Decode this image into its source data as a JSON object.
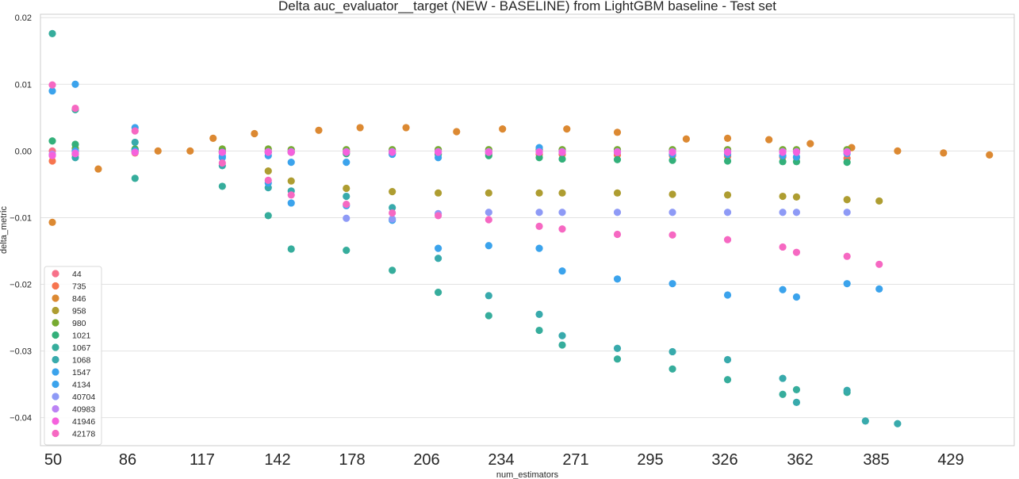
{
  "chart_data": {
    "type": "scatter",
    "title": "Delta auc_evaluator__target (NEW - BASELINE) from LightGBM baseline - Test set",
    "xlabel": "num_estimators",
    "ylabel": "delta_metric",
    "ylim": [
      -0.0442,
      0.0205
    ],
    "y_ticks": [
      0.02,
      0.01,
      0.0,
      -0.01,
      -0.02,
      -0.03,
      -0.04
    ],
    "y_tick_labels": [
      "0.02",
      "0.01",
      "0.00",
      "−0.01",
      "−0.02",
      "−0.03",
      "−0.04"
    ],
    "x_ticks": [
      50,
      86,
      117,
      142,
      178,
      206,
      234,
      271,
      295,
      326,
      362,
      385,
      429
    ],
    "grid": "horizontal",
    "legend_placement": "lower-left",
    "series": [
      {
        "name": "44",
        "color": "#f77189",
        "points": [
          [
            50,
            0.0
          ],
          [
            60,
            0.0
          ],
          [
            86,
            0.0
          ],
          [
            124,
            0.0
          ],
          [
            144,
            0.0
          ],
          [
            154,
            0.0
          ],
          [
            178,
            0.0
          ],
          [
            198,
            0.0
          ],
          [
            218,
            0.0
          ],
          [
            240,
            0.0
          ],
          [
            262,
            0.0
          ],
          [
            272,
            0.0
          ],
          [
            296,
            0.0
          ],
          [
            320,
            0.0
          ],
          [
            344,
            0.0
          ],
          [
            368,
            0.0
          ],
          [
            374,
            0.0
          ],
          [
            396,
            0.0
          ]
        ]
      },
      {
        "name": "735",
        "color": "#f7754f",
        "points": [
          [
            50,
            -0.0015
          ],
          [
            60,
            -0.0005
          ],
          [
            86,
            -0.0003
          ],
          [
            124,
            -0.0003
          ],
          [
            144,
            -0.0002
          ],
          [
            154,
            -0.0002
          ],
          [
            178,
            -0.0002
          ],
          [
            198,
            -0.0003
          ],
          [
            218,
            -0.0004
          ],
          [
            240,
            -0.0004
          ],
          [
            262,
            -0.0005
          ],
          [
            272,
            -0.0005
          ],
          [
            296,
            -0.0006
          ],
          [
            320,
            -0.0007
          ],
          [
            344,
            -0.0008
          ],
          [
            368,
            -0.0009
          ],
          [
            374,
            -0.001
          ],
          [
            396,
            -0.0011
          ]
        ]
      },
      {
        "name": "846",
        "color": "#dc8932",
        "points": [
          [
            50,
            -0.0107
          ],
          [
            70,
            -0.0027
          ],
          [
            96,
            0.0
          ],
          [
            110,
            0.0
          ],
          [
            120,
            0.0019
          ],
          [
            138,
            0.0026
          ],
          [
            166,
            0.0031
          ],
          [
            184,
            0.0035
          ],
          [
            204,
            0.0035
          ],
          [
            226,
            0.0029
          ],
          [
            246,
            0.0033
          ],
          [
            274,
            0.0033
          ],
          [
            296,
            0.0028
          ],
          [
            326,
            0.0018
          ],
          [
            344,
            0.0019
          ],
          [
            362,
            0.0017
          ],
          [
            380,
            0.0011
          ],
          [
            398,
            0.0005
          ],
          [
            418,
            0.0
          ],
          [
            438,
            -0.0003
          ],
          [
            458,
            -0.0006
          ]
        ]
      },
      {
        "name": "958",
        "color": "#ae9d31",
        "points": [
          [
            144,
            -0.003
          ],
          [
            154,
            -0.0045
          ],
          [
            178,
            -0.0056
          ],
          [
            198,
            -0.0061
          ],
          [
            218,
            -0.0063
          ],
          [
            240,
            -0.0063
          ],
          [
            262,
            -0.0063
          ],
          [
            272,
            -0.0063
          ],
          [
            296,
            -0.0063
          ],
          [
            320,
            -0.0065
          ],
          [
            344,
            -0.0066
          ],
          [
            368,
            -0.0068
          ],
          [
            374,
            -0.0069
          ],
          [
            396,
            -0.0073
          ],
          [
            410,
            -0.0075
          ]
        ]
      },
      {
        "name": "980",
        "color": "#77ab31",
        "points": [
          [
            60,
            0.0004
          ],
          [
            86,
            0.0003
          ],
          [
            124,
            0.0003
          ],
          [
            144,
            0.0003
          ],
          [
            154,
            0.0002
          ],
          [
            178,
            0.0002
          ],
          [
            198,
            0.0002
          ],
          [
            218,
            0.0002
          ],
          [
            240,
            0.0002
          ],
          [
            262,
            0.0002
          ],
          [
            272,
            0.0002
          ],
          [
            296,
            0.0002
          ],
          [
            320,
            0.0002
          ],
          [
            344,
            0.0002
          ],
          [
            368,
            0.0002
          ],
          [
            374,
            0.0002
          ],
          [
            396,
            0.0002
          ]
        ]
      },
      {
        "name": "1021",
        "color": "#33b07a",
        "points": [
          [
            50,
            0.0015
          ],
          [
            60,
            0.001
          ],
          [
            86,
            0.0002
          ],
          [
            124,
            -0.0001
          ],
          [
            144,
            -0.0002
          ],
          [
            154,
            -0.0002
          ],
          [
            178,
            -0.0004
          ],
          [
            198,
            -0.0004
          ],
          [
            218,
            -0.0005
          ],
          [
            240,
            -0.0007
          ],
          [
            262,
            -0.001
          ],
          [
            272,
            -0.0012
          ],
          [
            296,
            -0.0013
          ],
          [
            320,
            -0.0014
          ],
          [
            344,
            -0.0015
          ],
          [
            368,
            -0.0016
          ],
          [
            374,
            -0.0016
          ],
          [
            396,
            -0.0017
          ]
        ]
      },
      {
        "name": "1067",
        "color": "#36ad9c",
        "points": [
          [
            50,
            0.0176
          ],
          [
            60,
            0.0062
          ],
          [
            86,
            -0.0041
          ],
          [
            124,
            -0.0053
          ],
          [
            144,
            -0.0097
          ],
          [
            154,
            -0.0147
          ],
          [
            178,
            -0.0149
          ],
          [
            198,
            -0.0179
          ],
          [
            218,
            -0.0212
          ],
          [
            240,
            -0.0247
          ],
          [
            262,
            -0.0269
          ],
          [
            272,
            -0.0291
          ],
          [
            296,
            -0.0312
          ],
          [
            320,
            -0.0327
          ],
          [
            344,
            -0.0343
          ],
          [
            368,
            -0.0365
          ],
          [
            374,
            -0.0358
          ],
          [
            396,
            -0.0362
          ]
        ]
      },
      {
        "name": "1068",
        "color": "#38aaac",
        "points": [
          [
            60,
            -0.001
          ],
          [
            86,
            0.0013
          ],
          [
            124,
            -0.0022
          ],
          [
            144,
            -0.0055
          ],
          [
            154,
            -0.006
          ],
          [
            178,
            -0.0068
          ],
          [
            198,
            -0.0085
          ],
          [
            218,
            -0.0161
          ],
          [
            240,
            -0.0217
          ],
          [
            262,
            -0.0245
          ],
          [
            272,
            -0.0277
          ],
          [
            296,
            -0.0296
          ],
          [
            320,
            -0.0301
          ],
          [
            344,
            -0.0313
          ],
          [
            368,
            -0.0341
          ],
          [
            374,
            -0.0377
          ],
          [
            396,
            -0.0359
          ],
          [
            404,
            -0.0405
          ],
          [
            418,
            -0.0409
          ]
        ]
      },
      {
        "name": "1547",
        "color": "#3ba3ec",
        "points": [
          [
            60,
            0.01
          ],
          [
            86,
            0.0035
          ],
          [
            124,
            -0.001
          ],
          [
            144,
            -0.0048
          ],
          [
            154,
            -0.0078
          ],
          [
            178,
            -0.0082
          ],
          [
            198,
            -0.0104
          ],
          [
            218,
            -0.0146
          ],
          [
            240,
            -0.0142
          ],
          [
            262,
            -0.0146
          ],
          [
            272,
            -0.018
          ],
          [
            296,
            -0.0192
          ],
          [
            320,
            -0.0199
          ],
          [
            344,
            -0.0216
          ],
          [
            368,
            -0.0208
          ],
          [
            374,
            -0.0219
          ],
          [
            396,
            -0.0199
          ],
          [
            410,
            -0.0207
          ]
        ]
      },
      {
        "name": "4134",
        "color": "#3ba3ec",
        "points": [
          [
            50,
            0.009
          ],
          [
            60,
            0.0
          ],
          [
            86,
            0.0
          ],
          [
            124,
            -0.0008
          ],
          [
            144,
            -0.0007
          ],
          [
            154,
            -0.0017
          ],
          [
            178,
            -0.0017
          ],
          [
            198,
            -0.0005
          ],
          [
            218,
            -0.001
          ],
          [
            240,
            -0.0002
          ],
          [
            262,
            0.0005
          ],
          [
            272,
            -0.0002
          ],
          [
            296,
            -0.0002
          ],
          [
            320,
            -0.0005
          ],
          [
            344,
            -0.0005
          ],
          [
            368,
            -0.0007
          ],
          [
            374,
            -0.0009
          ],
          [
            396,
            -0.0004
          ]
        ]
      },
      {
        "name": "40704",
        "color": "#8e9af6",
        "points": [
          [
            178,
            -0.0101
          ],
          [
            198,
            -0.0102
          ],
          [
            218,
            -0.0094
          ],
          [
            240,
            -0.0092
          ],
          [
            262,
            -0.0092
          ],
          [
            272,
            -0.0092
          ],
          [
            296,
            -0.0092
          ],
          [
            320,
            -0.0092
          ],
          [
            344,
            -0.0092
          ],
          [
            368,
            -0.0092
          ],
          [
            374,
            -0.0092
          ],
          [
            396,
            -0.0092
          ]
        ]
      },
      {
        "name": "40983",
        "color": "#bb83f4",
        "points": [
          [
            50,
            -0.0005
          ],
          [
            60,
            -0.0003
          ],
          [
            86,
            -0.0002
          ],
          [
            124,
            -0.0002
          ],
          [
            144,
            -0.0001
          ],
          [
            154,
            -0.0001
          ],
          [
            178,
            -0.0001
          ],
          [
            198,
            -0.0001
          ],
          [
            218,
            -0.0001
          ],
          [
            240,
            -0.0001
          ],
          [
            262,
            -0.0001
          ],
          [
            272,
            -0.0001
          ],
          [
            296,
            -0.0001
          ],
          [
            320,
            -0.0001
          ],
          [
            344,
            -0.0001
          ],
          [
            368,
            -0.0001
          ],
          [
            374,
            -0.0001
          ],
          [
            396,
            -0.0001
          ]
        ]
      },
      {
        "name": "41946",
        "color": "#f561dd",
        "points": [
          [
            50,
            -0.0007
          ],
          [
            60,
            -0.0004
          ],
          [
            86,
            -0.0002
          ],
          [
            124,
            -0.0002
          ],
          [
            144,
            -0.0002
          ],
          [
            154,
            -0.0002
          ],
          [
            178,
            -0.0002
          ],
          [
            198,
            -0.0002
          ],
          [
            218,
            -0.0002
          ],
          [
            240,
            -0.0002
          ],
          [
            262,
            -0.0002
          ],
          [
            272,
            -0.0002
          ],
          [
            296,
            -0.0002
          ],
          [
            320,
            -0.0002
          ],
          [
            344,
            -0.0002
          ],
          [
            368,
            -0.0002
          ],
          [
            374,
            -0.0002
          ],
          [
            396,
            -0.0002
          ]
        ]
      },
      {
        "name": "42178",
        "color": "#f668c2",
        "points": [
          [
            50,
            0.0099
          ],
          [
            60,
            0.0064
          ],
          [
            86,
            0.003
          ],
          [
            124,
            -0.0018
          ],
          [
            144,
            -0.0044
          ],
          [
            154,
            -0.0066
          ],
          [
            178,
            -0.008
          ],
          [
            198,
            -0.0093
          ],
          [
            218,
            -0.0097
          ],
          [
            240,
            -0.0103
          ],
          [
            262,
            -0.0113
          ],
          [
            272,
            -0.0117
          ],
          [
            296,
            -0.0125
          ],
          [
            320,
            -0.0126
          ],
          [
            344,
            -0.0133
          ],
          [
            368,
            -0.0144
          ],
          [
            374,
            -0.0152
          ],
          [
            396,
            -0.0158
          ],
          [
            410,
            -0.017
          ]
        ]
      }
    ]
  }
}
